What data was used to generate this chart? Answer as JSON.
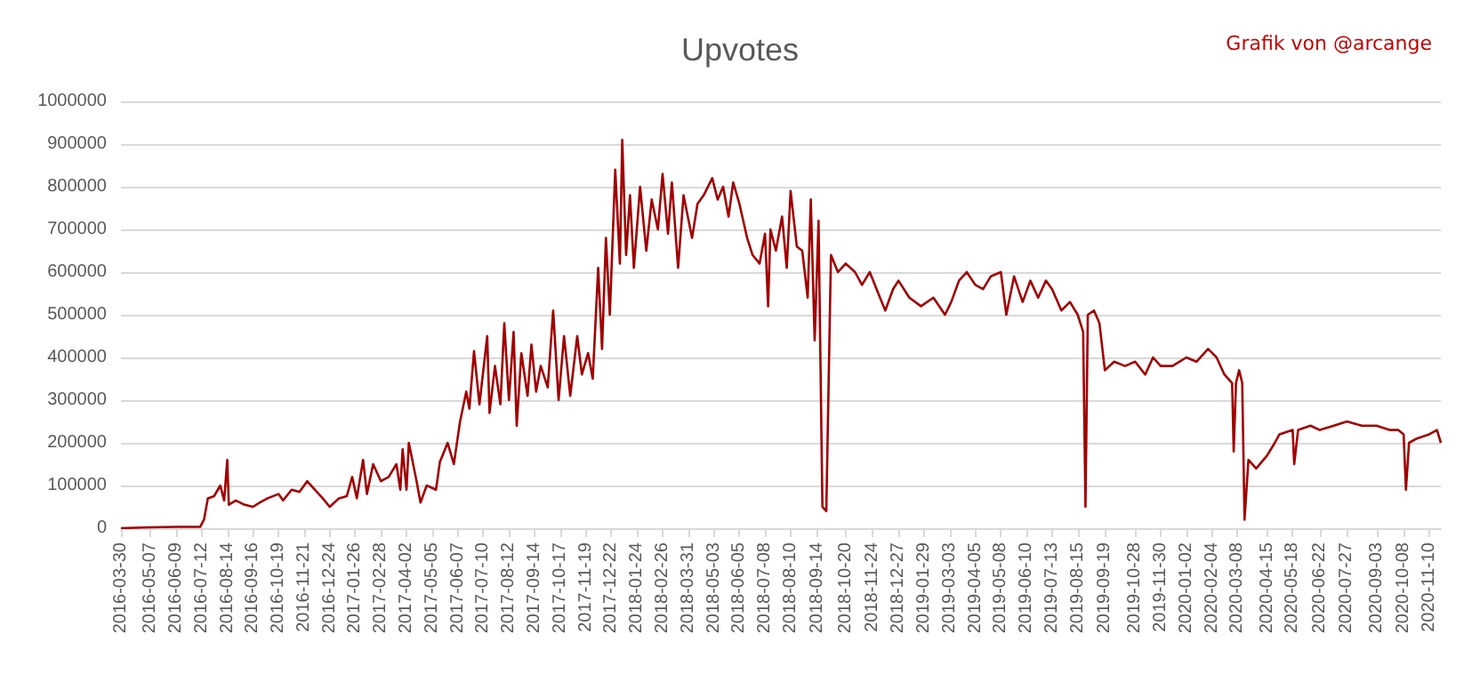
{
  "chart_data": {
    "type": "line",
    "title": "Upvotes",
    "annotations": [
      "Grafik von @arcange"
    ],
    "x": [
      "2016-03-30",
      "2016-05-07",
      "2016-06-09",
      "2016-07-10",
      "2016-07-15",
      "2016-07-20",
      "2016-07-28",
      "2016-08-05",
      "2016-08-10",
      "2016-08-14",
      "2016-08-16",
      "2016-08-25",
      "2016-09-05",
      "2016-09-16",
      "2016-09-25",
      "2016-10-05",
      "2016-10-19",
      "2016-10-25",
      "2016-11-05",
      "2016-11-15",
      "2016-11-25",
      "2016-12-05",
      "2016-12-15",
      "2016-12-24",
      "2017-01-05",
      "2017-01-15",
      "2017-01-22",
      "2017-01-28",
      "2017-02-05",
      "2017-02-10",
      "2017-02-18",
      "2017-02-28",
      "2017-03-10",
      "2017-03-20",
      "2017-03-25",
      "2017-03-28",
      "2017-04-02",
      "2017-04-05",
      "2017-04-15",
      "2017-04-20",
      "2017-04-28",
      "2017-05-10",
      "2017-05-15",
      "2017-05-25",
      "2017-06-02",
      "2017-06-10",
      "2017-06-18",
      "2017-06-22",
      "2017-06-28",
      "2017-07-05",
      "2017-07-15",
      "2017-07-18",
      "2017-07-25",
      "2017-08-01",
      "2017-08-06",
      "2017-08-12",
      "2017-08-18",
      "2017-08-22",
      "2017-08-28",
      "2017-09-05",
      "2017-09-10",
      "2017-09-16",
      "2017-09-22",
      "2017-10-01",
      "2017-10-08",
      "2017-10-15",
      "2017-10-22",
      "2017-10-30",
      "2017-11-08",
      "2017-11-14",
      "2017-11-22",
      "2017-11-28",
      "2017-12-05",
      "2017-12-10",
      "2017-12-15",
      "2017-12-20",
      "2017-12-27",
      "2018-01-02",
      "2018-01-05",
      "2018-01-10",
      "2018-01-15",
      "2018-01-20",
      "2018-01-28",
      "2018-02-05",
      "2018-02-12",
      "2018-02-20",
      "2018-02-26",
      "2018-03-05",
      "2018-03-10",
      "2018-03-18",
      "2018-03-25",
      "2018-04-05",
      "2018-04-12",
      "2018-04-20",
      "2018-05-01",
      "2018-05-08",
      "2018-05-15",
      "2018-05-22",
      "2018-05-28",
      "2018-06-05",
      "2018-06-15",
      "2018-06-22",
      "2018-07-01",
      "2018-07-08",
      "2018-07-12",
      "2018-07-15",
      "2018-07-22",
      "2018-07-30",
      "2018-08-05",
      "2018-08-10",
      "2018-08-18",
      "2018-08-25",
      "2018-09-01",
      "2018-09-05",
      "2018-09-10",
      "2018-09-15",
      "2018-09-20",
      "2018-09-25",
      "2018-10-01",
      "2018-10-10",
      "2018-10-20",
      "2018-11-01",
      "2018-11-10",
      "2018-11-20",
      "2018-12-01",
      "2018-12-10",
      "2018-12-20",
      "2018-12-27",
      "2019-01-10",
      "2019-01-25",
      "2019-02-10",
      "2019-02-25",
      "2019-03-05",
      "2019-03-15",
      "2019-03-25",
      "2019-04-05",
      "2019-04-15",
      "2019-04-25",
      "2019-05-08",
      "2019-05-15",
      "2019-05-25",
      "2019-06-05",
      "2019-06-15",
      "2019-06-25",
      "2019-07-05",
      "2019-07-13",
      "2019-07-25",
      "2019-08-05",
      "2019-08-15",
      "2019-08-22",
      "2019-08-25",
      "2019-08-28",
      "2019-09-05",
      "2019-09-12",
      "2019-09-19",
      "2019-10-01",
      "2019-10-15",
      "2019-10-28",
      "2019-11-10",
      "2019-11-20",
      "2019-11-30",
      "2019-12-15",
      "2020-01-02",
      "2020-01-15",
      "2020-01-30",
      "2020-02-10",
      "2020-02-20",
      "2020-03-01",
      "2020-03-03",
      "2020-03-06",
      "2020-03-10",
      "2020-03-14",
      "2020-03-17",
      "2020-03-22",
      "2020-04-01",
      "2020-04-15",
      "2020-04-25",
      "2020-05-01",
      "2020-05-18",
      "2020-05-20",
      "2020-05-25",
      "2020-06-10",
      "2020-06-22",
      "2020-07-10",
      "2020-07-27",
      "2020-08-15",
      "2020-09-03",
      "2020-09-20",
      "2020-10-01",
      "2020-10-08",
      "2020-10-11",
      "2020-10-15",
      "2020-10-25",
      "2020-11-10",
      "2020-11-20",
      "2020-11-25"
    ],
    "series": [
      {
        "color": "#a00000",
        "values": [
          0,
          2000,
          3000,
          3000,
          20000,
          70000,
          75000,
          100000,
          65000,
          160000,
          55000,
          65000,
          55000,
          50000,
          60000,
          70000,
          80000,
          65000,
          90000,
          85000,
          110000,
          90000,
          70000,
          50000,
          70000,
          75000,
          120000,
          70000,
          160000,
          80000,
          150000,
          110000,
          120000,
          150000,
          90000,
          185000,
          90000,
          200000,
          110000,
          60000,
          100000,
          90000,
          155000,
          200000,
          150000,
          250000,
          320000,
          280000,
          415000,
          290000,
          450000,
          270000,
          380000,
          290000,
          480000,
          300000,
          460000,
          240000,
          410000,
          310000,
          430000,
          320000,
          380000,
          330000,
          510000,
          300000,
          450000,
          310000,
          450000,
          360000,
          410000,
          350000,
          610000,
          420000,
          680000,
          500000,
          840000,
          620000,
          910000,
          640000,
          780000,
          610000,
          800000,
          650000,
          770000,
          700000,
          830000,
          690000,
          810000,
          610000,
          780000,
          680000,
          760000,
          780000,
          820000,
          770000,
          800000,
          730000,
          810000,
          760000,
          680000,
          640000,
          620000,
          690000,
          520000,
          700000,
          650000,
          730000,
          610000,
          790000,
          660000,
          650000,
          540000,
          770000,
          440000,
          720000,
          50000,
          40000,
          640000,
          600000,
          620000,
          600000,
          570000,
          600000,
          550000,
          510000,
          560000,
          580000,
          540000,
          520000,
          540000,
          500000,
          530000,
          580000,
          600000,
          570000,
          560000,
          590000,
          600000,
          500000,
          590000,
          530000,
          580000,
          540000,
          580000,
          560000,
          510000,
          530000,
          500000,
          460000,
          50000,
          500000,
          510000,
          480000,
          370000,
          390000,
          380000,
          390000,
          360000,
          400000,
          380000,
          380000,
          400000,
          390000,
          420000,
          400000,
          360000,
          340000,
          180000,
          340000,
          370000,
          340000,
          20000,
          160000,
          140000,
          170000,
          200000,
          220000,
          230000,
          150000,
          230000,
          240000,
          230000,
          240000,
          250000,
          240000,
          240000,
          230000,
          230000,
          220000,
          90000,
          200000,
          210000,
          220000,
          230000,
          200000
        ]
      }
    ],
    "xlim": [
      "2016-03-30",
      "2020-11-25"
    ],
    "xticks": [
      "2016-03-30",
      "2016-05-07",
      "2016-06-09",
      "2016-07-12",
      "2016-08-14",
      "2016-09-16",
      "2016-10-19",
      "2016-11-21",
      "2016-12-24",
      "2017-01-26",
      "2017-02-28",
      "2017-04-02",
      "2017-05-05",
      "2017-06-07",
      "2017-07-10",
      "2017-08-12",
      "2017-09-14",
      "2017-10-17",
      "2017-11-19",
      "2017-12-22",
      "2018-01-24",
      "2018-02-26",
      "2018-03-31",
      "2018-05-03",
      "2018-06-05",
      "2018-07-08",
      "2018-08-10",
      "2018-09-14",
      "2018-10-20",
      "2018-11-24",
      "2018-12-27",
      "2019-01-29",
      "2019-03-03",
      "2019-04-05",
      "2019-05-08",
      "2019-06-10",
      "2019-07-13",
      "2019-08-15",
      "2019-09-19",
      "2019-10-28",
      "2019-11-30",
      "2020-01-02",
      "2020-02-04",
      "2020-03-08",
      "2020-04-15",
      "2020-05-18",
      "2020-06-22",
      "2020-07-27",
      "2020-09-03",
      "2020-10-08",
      "2020-11-10"
    ],
    "ylim": [
      0,
      1000000
    ],
    "yticks": [
      0,
      100000,
      200000,
      300000,
      400000,
      500000,
      600000,
      700000,
      800000,
      900000,
      1000000
    ],
    "grid": "y"
  }
}
